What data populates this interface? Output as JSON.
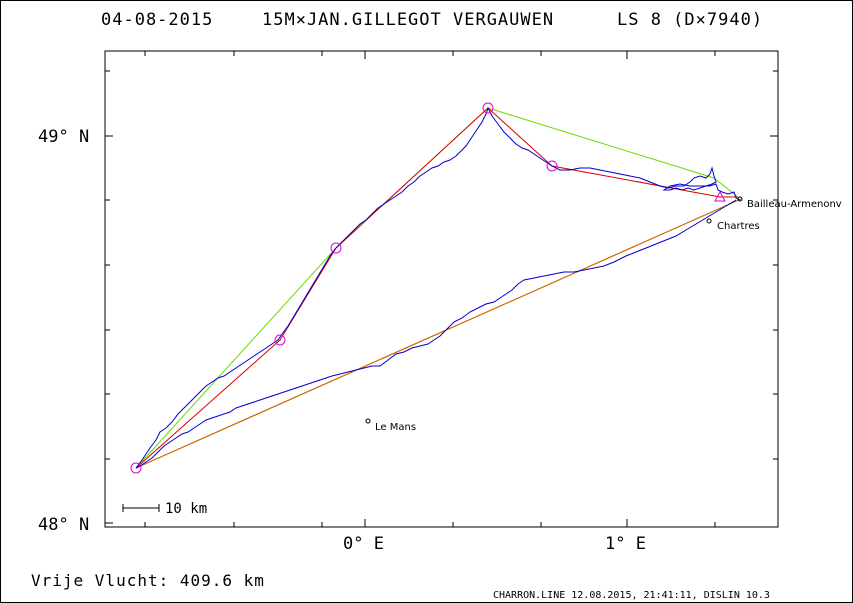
{
  "header": {
    "date": "04-08-2015",
    "title": "15M×JAN.GILLEGOT VERGAUWEN",
    "ls": "LS 8 (D×7940)"
  },
  "axes": {
    "lat_top": "49° N",
    "lat_bottom": "48° N",
    "lon_left": "0° E",
    "lon_right": "1° E"
  },
  "cities": [
    {
      "name": "Bailleau-Armenonv"
    },
    {
      "name": "Chartres"
    },
    {
      "name": "Le Mans"
    }
  ],
  "scale_bar": {
    "label": "10 km"
  },
  "footer": {
    "distance": "Vrije Vlucht:  409.6 km",
    "credit": "CHARRON.LINE 12.08.2015, 21:41:11, DISLIN 10.3"
  },
  "colors": {
    "track": "#0000cc",
    "task": "#dd0000",
    "optimized": "#66dd00",
    "turnpoint": "#dd00dd",
    "closing": "#cc6600"
  }
}
